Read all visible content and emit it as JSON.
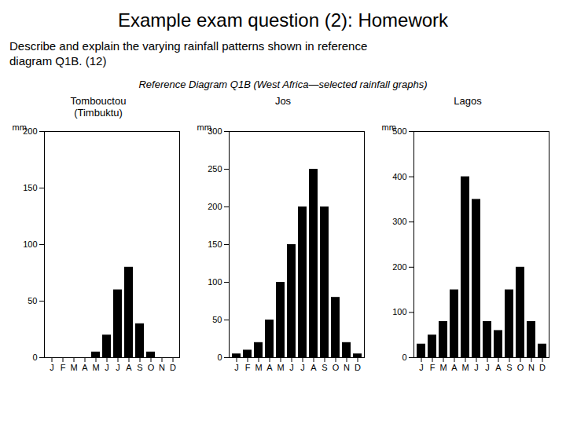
{
  "title": "Example exam question (2): Homework",
  "subtitle": [
    "Describe and explain the varying rainfall patterns shown in reference",
    "diagram Q1B.  (12)"
  ],
  "caption": "Reference Diagram Q1B (West Africa—selected rainfall graphs)",
  "chart_data": [
    {
      "type": "bar",
      "title": "Tombouctou\n(Timbuktu)",
      "categories": [
        "J",
        "F",
        "M",
        "A",
        "M",
        "J",
        "J",
        "A",
        "S",
        "O",
        "N",
        "D"
      ],
      "values": [
        0,
        0,
        0,
        0,
        5,
        20,
        60,
        80,
        30,
        5,
        0,
        0
      ],
      "ylabel": "mm",
      "ylim": [
        0,
        200
      ],
      "yticks": [
        0,
        50,
        100,
        150,
        200
      ],
      "grid": false
    },
    {
      "type": "bar",
      "title": "Jos",
      "categories": [
        "J",
        "F",
        "M",
        "A",
        "M",
        "J",
        "J",
        "A",
        "S",
        "O",
        "N",
        "D"
      ],
      "values": [
        5,
        10,
        20,
        50,
        100,
        150,
        200,
        250,
        200,
        80,
        20,
        5
      ],
      "ylabel": "mm",
      "ylim": [
        0,
        300
      ],
      "yticks": [
        0,
        50,
        100,
        150,
        200,
        250,
        300
      ],
      "grid": false
    },
    {
      "type": "bar",
      "title": "Lagos",
      "categories": [
        "J",
        "F",
        "M",
        "A",
        "M",
        "J",
        "J",
        "A",
        "S",
        "O",
        "N",
        "D"
      ],
      "values": [
        30,
        50,
        80,
        150,
        400,
        350,
        80,
        60,
        150,
        200,
        80,
        30
      ],
      "ylabel": "mm",
      "ylim": [
        0,
        500
      ],
      "yticks": [
        0,
        100,
        200,
        300,
        400,
        500
      ],
      "grid": false
    }
  ]
}
